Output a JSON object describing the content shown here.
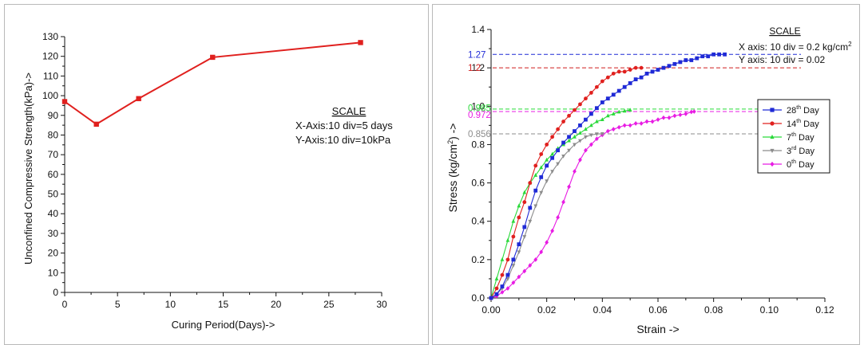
{
  "chart_data": [
    {
      "type": "line",
      "xlabel": "Curing Period(Days)->",
      "ylabel": "Unconfined Compressive Strength(kPa)->",
      "xlim": [
        0,
        30
      ],
      "ylim": [
        0,
        130
      ],
      "x_ticks": [
        0,
        5,
        10,
        15,
        20,
        25,
        30
      ],
      "y_ticks": [
        0,
        10,
        20,
        30,
        40,
        50,
        60,
        70,
        80,
        90,
        100,
        110,
        120,
        130
      ],
      "grid": false,
      "series": [
        {
          "color": "#e0201e",
          "marker": "square",
          "x": [
            0,
            3,
            7,
            14,
            28
          ],
          "y": [
            97,
            85.5,
            98.5,
            119.5,
            127
          ]
        }
      ],
      "annotation": {
        "title": "SCALE",
        "lines": [
          "X-Axis:10 div=5 days",
          "Y-Axis:10 div=10kPa"
        ]
      }
    },
    {
      "type": "line",
      "xlabel": "Strain ->",
      "ylabel": "Stress (kg/cm²) ->",
      "ylabel_parts": [
        "Stress (kg/cm",
        "2",
        ") ->"
      ],
      "xlim": [
        0,
        0.12
      ],
      "ylim": [
        0,
        1.4
      ],
      "x_ticks": [
        "0.00",
        "0.02",
        "0.04",
        "0.06",
        "0.08",
        "0.10",
        "0.12"
      ],
      "y_ticks": [
        "0.0",
        "0.2",
        "0.4",
        "0.6",
        "0.8",
        "1.0",
        "1.2",
        "1.4"
      ],
      "grid": false,
      "legend_position": "right",
      "series": [
        {
          "name": "28th Day",
          "name_parts": [
            "28",
            "th",
            " Day"
          ],
          "color": "#1f2ad6",
          "marker": "square",
          "x": [
            0,
            0.002,
            0.004,
            0.006,
            0.008,
            0.01,
            0.012,
            0.014,
            0.016,
            0.018,
            0.02,
            0.022,
            0.024,
            0.026,
            0.028,
            0.03,
            0.032,
            0.034,
            0.036,
            0.038,
            0.04,
            0.042,
            0.044,
            0.046,
            0.048,
            0.05,
            0.052,
            0.054,
            0.056,
            0.058,
            0.06,
            0.062,
            0.064,
            0.066,
            0.068,
            0.07,
            0.072,
            0.074,
            0.076,
            0.078,
            0.08,
            0.082,
            0.084
          ],
          "y": [
            0,
            0.02,
            0.06,
            0.12,
            0.2,
            0.28,
            0.37,
            0.47,
            0.56,
            0.63,
            0.69,
            0.73,
            0.77,
            0.81,
            0.84,
            0.87,
            0.9,
            0.93,
            0.96,
            0.99,
            1.02,
            1.04,
            1.06,
            1.08,
            1.1,
            1.12,
            1.14,
            1.15,
            1.17,
            1.18,
            1.19,
            1.2,
            1.21,
            1.22,
            1.23,
            1.24,
            1.24,
            1.25,
            1.26,
            1.26,
            1.27,
            1.27,
            1.27
          ]
        },
        {
          "name": "14th Day",
          "name_parts": [
            "14",
            "th",
            " Day"
          ],
          "color": "#e0201e",
          "marker": "circle",
          "x": [
            0,
            0.002,
            0.004,
            0.006,
            0.008,
            0.01,
            0.012,
            0.014,
            0.016,
            0.018,
            0.02,
            0.022,
            0.024,
            0.026,
            0.028,
            0.03,
            0.032,
            0.034,
            0.036,
            0.038,
            0.04,
            0.042,
            0.044,
            0.046,
            0.048,
            0.05,
            0.052,
            0.054
          ],
          "y": [
            0,
            0.05,
            0.12,
            0.2,
            0.32,
            0.42,
            0.5,
            0.6,
            0.69,
            0.75,
            0.8,
            0.84,
            0.88,
            0.92,
            0.95,
            0.98,
            1.01,
            1.04,
            1.07,
            1.1,
            1.13,
            1.15,
            1.17,
            1.18,
            1.18,
            1.19,
            1.2,
            1.2
          ]
        },
        {
          "name": "7th Day",
          "name_parts": [
            "7",
            "th",
            " Day"
          ],
          "color": "#2ad93a",
          "marker": "triangle-up",
          "x": [
            0,
            0.002,
            0.004,
            0.006,
            0.008,
            0.01,
            0.012,
            0.014,
            0.016,
            0.018,
            0.02,
            0.022,
            0.024,
            0.026,
            0.028,
            0.03,
            0.032,
            0.034,
            0.036,
            0.038,
            0.04,
            0.042,
            0.044,
            0.046,
            0.048,
            0.05
          ],
          "y": [
            0,
            0.1,
            0.2,
            0.3,
            0.4,
            0.48,
            0.55,
            0.6,
            0.64,
            0.68,
            0.72,
            0.75,
            0.78,
            0.8,
            0.82,
            0.84,
            0.86,
            0.88,
            0.9,
            0.92,
            0.93,
            0.95,
            0.96,
            0.97,
            0.975,
            0.98
          ]
        },
        {
          "name": "3rd Day",
          "name_parts": [
            "3",
            "rd",
            " Day"
          ],
          "color": "#8c8c8c",
          "marker": "triangle-down",
          "x": [
            0,
            0.002,
            0.004,
            0.006,
            0.008,
            0.01,
            0.012,
            0.014,
            0.016,
            0.018,
            0.02,
            0.022,
            0.024,
            0.026,
            0.028,
            0.03,
            0.032,
            0.034,
            0.036,
            0.038,
            0.04
          ],
          "y": [
            0,
            0.02,
            0.05,
            0.1,
            0.17,
            0.24,
            0.32,
            0.4,
            0.48,
            0.55,
            0.61,
            0.66,
            0.7,
            0.74,
            0.77,
            0.8,
            0.82,
            0.84,
            0.85,
            0.855,
            0.856
          ]
        },
        {
          "name": "0th Day",
          "name_parts": [
            "0",
            "th",
            " Day"
          ],
          "color": "#e81ce3",
          "marker": "diamond",
          "x": [
            0,
            0.002,
            0.004,
            0.006,
            0.008,
            0.01,
            0.012,
            0.014,
            0.016,
            0.018,
            0.02,
            0.022,
            0.024,
            0.026,
            0.028,
            0.03,
            0.032,
            0.034,
            0.036,
            0.038,
            0.04,
            0.042,
            0.044,
            0.046,
            0.048,
            0.05,
            0.052,
            0.054,
            0.056,
            0.058,
            0.06,
            0.062,
            0.064,
            0.066,
            0.068,
            0.07,
            0.072,
            0.073
          ],
          "y": [
            0,
            0.01,
            0.03,
            0.05,
            0.08,
            0.11,
            0.14,
            0.17,
            0.2,
            0.24,
            0.29,
            0.35,
            0.42,
            0.5,
            0.58,
            0.66,
            0.72,
            0.77,
            0.8,
            0.83,
            0.85,
            0.87,
            0.88,
            0.89,
            0.9,
            0.9,
            0.91,
            0.91,
            0.92,
            0.92,
            0.93,
            0.94,
            0.94,
            0.95,
            0.955,
            0.96,
            0.97,
            0.972
          ]
        }
      ],
      "reference_lines": [
        {
          "value": "1.27",
          "y": 1.27,
          "color": "#1f2ad6"
        },
        {
          "value": "1.2",
          "y": 1.2,
          "color": "#d01c1c"
        },
        {
          "value": "0.985",
          "y": 0.985,
          "color": "#2ad93a"
        },
        {
          "value": "0.972",
          "y": 0.972,
          "color": "#e81ce3"
        },
        {
          "value": "0.856",
          "y": 0.856,
          "color": "#8c8c8c"
        }
      ],
      "annotation": {
        "title": "SCALE",
        "lines": [
          "X axis: 10 div = 0.2 kg/cm²",
          "Y axis: 10 div = 0.02"
        ],
        "line1_parts": [
          "X axis: 10 div = 0.2 kg/cm",
          "2"
        ]
      }
    }
  ]
}
